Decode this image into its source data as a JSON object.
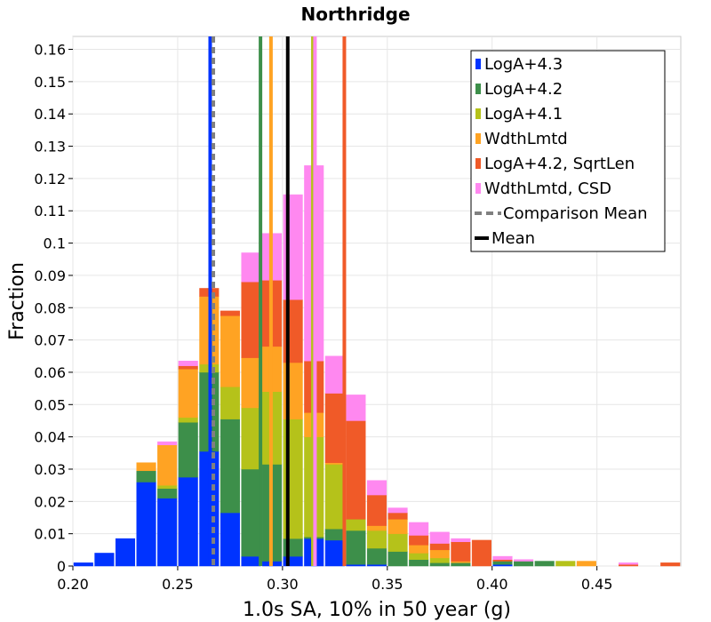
{
  "chart_data": {
    "type": "histogram",
    "title": "Northridge",
    "xlabel": "1.0s SA, 10% in 50 year (g)",
    "ylabel": "Fraction",
    "xlim": [
      0.2,
      0.49
    ],
    "ylim": [
      0,
      0.164
    ],
    "x_ticks": [
      "0.20",
      "0.25",
      "0.30",
      "0.35",
      "0.40",
      "0.45"
    ],
    "x_tick_values": [
      0.2,
      0.25,
      0.3,
      0.35,
      0.4,
      0.45
    ],
    "y_ticks": [
      "0",
      "0.01",
      "0.02",
      "0.03",
      "0.04",
      "0.05",
      "0.06",
      "0.07",
      "0.08",
      "0.09",
      "0.1",
      "0.11",
      "0.12",
      "0.13",
      "0.14",
      "0.15",
      "0.16"
    ],
    "y_tick_values": [
      0,
      0.01,
      0.02,
      0.03,
      0.04,
      0.05,
      0.06,
      0.07,
      0.08,
      0.09,
      0.1,
      0.11,
      0.12,
      0.13,
      0.14,
      0.15,
      0.16
    ],
    "grid": true,
    "legend_position": "top-right",
    "bin_width": 0.01,
    "bin_starts": [
      0.2,
      0.21,
      0.22,
      0.23,
      0.24,
      0.25,
      0.26,
      0.27,
      0.28,
      0.29,
      0.3,
      0.31,
      0.32,
      0.33,
      0.34,
      0.35,
      0.36,
      0.37,
      0.38,
      0.39,
      0.4,
      0.41,
      0.42,
      0.43,
      0.44,
      0.45,
      0.46,
      0.47,
      0.48
    ],
    "series": [
      {
        "name": "LogA+4.3",
        "color": "#0033ff",
        "values": [
          0.001,
          0.004,
          0.0085,
          0.026,
          0.021,
          0.0275,
          0.0355,
          0.0165,
          0.003,
          0.0015,
          0.003,
          0.0085,
          0.008,
          0.0005,
          0.0005,
          0,
          0,
          0,
          0,
          0,
          0.0005,
          0,
          0,
          0,
          0,
          0,
          0,
          0,
          0
        ]
      },
      {
        "name": "LogA+4.2",
        "color": "#3d8f4a",
        "values": [
          0,
          0,
          0,
          0.0035,
          0.003,
          0.017,
          0.0245,
          0.029,
          0.027,
          0.03,
          0.0055,
          0.0005,
          0.0035,
          0.0105,
          0.005,
          0.0045,
          0.002,
          0.001,
          0.001,
          0,
          0.001,
          0.0015,
          0.0015,
          0,
          0,
          0,
          0,
          0,
          0
        ]
      },
      {
        "name": "LogA+4.1",
        "color": "#b5c21a",
        "values": [
          0,
          0,
          0,
          0,
          0.001,
          0.0015,
          0.0025,
          0.01,
          0.019,
          0.0225,
          0.037,
          0.031,
          0.02,
          0.0035,
          0.0055,
          0.0055,
          0.002,
          0.0015,
          0,
          0,
          0,
          0,
          0,
          0.0015,
          0,
          0,
          0,
          0,
          0
        ]
      },
      {
        "name": "WdthLmtd",
        "color": "#ffa323",
        "values": [
          0,
          0,
          0,
          0.0025,
          0.0125,
          0.015,
          0.021,
          0.022,
          0.0155,
          0.014,
          0.0175,
          0.0075,
          0.0005,
          0,
          0.0015,
          0.0045,
          0.0025,
          0.0025,
          0.0005,
          0,
          0,
          0,
          0,
          0,
          0.0015,
          0,
          0,
          0,
          0
        ]
      },
      {
        "name": "LogA+4.2, SqrtLen",
        "color": "#f05a28",
        "values": [
          0,
          0,
          0,
          0,
          0,
          0.001,
          0.0025,
          0.0015,
          0.0235,
          0.0205,
          0.0195,
          0.016,
          0.0215,
          0.0305,
          0.0095,
          0.002,
          0.003,
          0.002,
          0.006,
          0.008,
          0.0005,
          0,
          0,
          0,
          0,
          0,
          0.0005,
          0,
          0.001
        ]
      },
      {
        "name": "WdthLmtd, CSD",
        "color": "#ff88f0",
        "values": [
          0,
          0,
          0,
          0,
          0.001,
          0.0015,
          0,
          0,
          0.009,
          0.0145,
          0.0325,
          0.0605,
          0.0115,
          0.008,
          0.0045,
          0.0015,
          0.004,
          0.0035,
          0.001,
          0,
          0.001,
          0.0005,
          0,
          0,
          0,
          0,
          0.0005,
          0,
          0
        ]
      }
    ],
    "vertical_lines": [
      {
        "series": "LogA+4.3",
        "x": 0.2655,
        "color": "#0033ff",
        "style": "solid"
      },
      {
        "series": "LogA+4.2",
        "x": 0.2895,
        "color": "#3d8f4a",
        "style": "solid"
      },
      {
        "series": "LogA+4.1",
        "x": 0.3145,
        "color": "#b5c21a",
        "style": "solid"
      },
      {
        "series": "WdthLmtd",
        "x": 0.2945,
        "color": "#ffa323",
        "style": "solid"
      },
      {
        "series": "LogA+4.2, SqrtLen",
        "x": 0.3295,
        "color": "#f05a28",
        "style": "solid"
      },
      {
        "series": "WdthLmtd, CSD",
        "x": 0.3155,
        "color": "#ff88f0",
        "style": "solid"
      },
      {
        "series": "Comparison Mean",
        "x": 0.267,
        "color": "#808080",
        "style": "dashed"
      },
      {
        "series": "Mean",
        "x": 0.3025,
        "color": "#000000",
        "style": "solid"
      }
    ],
    "legend": [
      {
        "label": "LogA+4.3",
        "color": "#0033ff",
        "kind": "box"
      },
      {
        "label": "LogA+4.2",
        "color": "#3d8f4a",
        "kind": "box"
      },
      {
        "label": "LogA+4.1",
        "color": "#b5c21a",
        "kind": "box"
      },
      {
        "label": "WdthLmtd",
        "color": "#ffa323",
        "kind": "box"
      },
      {
        "label": "LogA+4.2, SqrtLen",
        "color": "#f05a28",
        "kind": "box"
      },
      {
        "label": "WdthLmtd, CSD",
        "color": "#ff88f0",
        "kind": "box"
      },
      {
        "label": "Comparison Mean",
        "color": "#808080",
        "kind": "dashed"
      },
      {
        "label": "Mean",
        "color": "#000000",
        "kind": "line"
      }
    ]
  }
}
